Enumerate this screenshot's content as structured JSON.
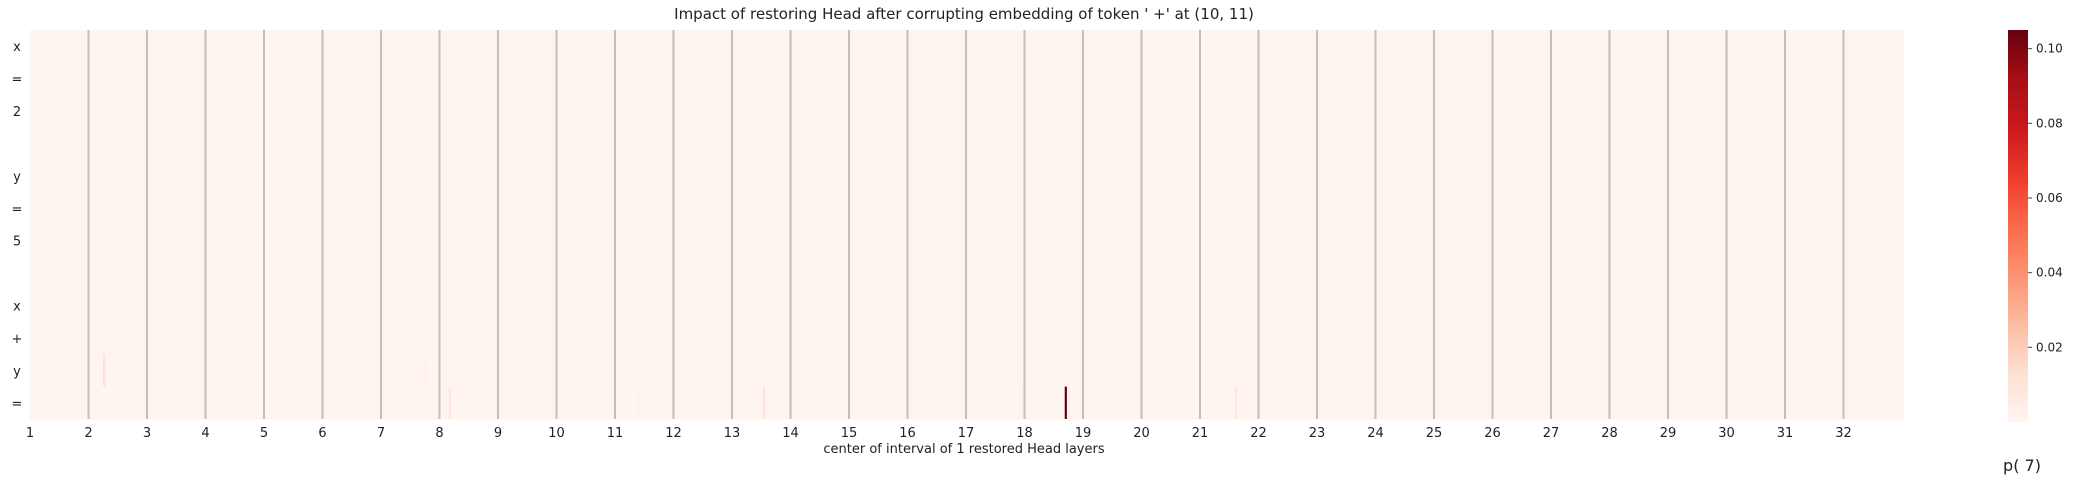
{
  "chart_data": {
    "type": "heatmap",
    "title": "Impact of restoring Head after corrupting embedding of token ' +' at (10, 11)",
    "xlabel": "center of interval of 1 restored Head layers",
    "ylabel": "",
    "y_tokens": [
      "x",
      "=",
      "2",
      "",
      "y",
      "=",
      "5",
      "",
      "x",
      "+",
      "y",
      "="
    ],
    "x_tick_labels": [
      "1",
      "2",
      "3",
      "4",
      "5",
      "6",
      "7",
      "8",
      "9",
      "10",
      "11",
      "12",
      "13",
      "14",
      "15",
      "16",
      "17",
      "18",
      "19",
      "20",
      "21",
      "22",
      "23",
      "24",
      "25",
      "26",
      "27",
      "28",
      "29",
      "30",
      "31",
      "32"
    ],
    "layers": 32,
    "heads_per_layer": 32,
    "layer_separators": true,
    "background_value": 0.0,
    "colormap": "Reds",
    "vmin": 0.0,
    "vmax": 0.105,
    "colorbar_ticks": [
      "0.02",
      "0.04",
      "0.06",
      "0.08",
      "0.10"
    ],
    "colorbar_tick_values": [
      0.02,
      0.04,
      0.06,
      0.08,
      0.1
    ],
    "colorbar_label": "p( 7)",
    "highlights": [
      {
        "row": 11,
        "layer": 18,
        "head": 22,
        "value": 0.105
      },
      {
        "row": 10,
        "layer": 2,
        "head": 8,
        "value": 0.012
      },
      {
        "row": 11,
        "layer": 8,
        "head": 5,
        "value": 0.008
      },
      {
        "row": 11,
        "layer": 13,
        "head": 17,
        "value": 0.01
      },
      {
        "row": 11,
        "layer": 21,
        "head": 19,
        "value": 0.008
      },
      {
        "row": 10,
        "layer": 7,
        "head": 24,
        "value": 0.004
      },
      {
        "row": 11,
        "layer": 11,
        "head": 12,
        "value": 0.003
      },
      {
        "row": 11,
        "layer": 17,
        "head": 30,
        "value": 0.003
      }
    ]
  }
}
